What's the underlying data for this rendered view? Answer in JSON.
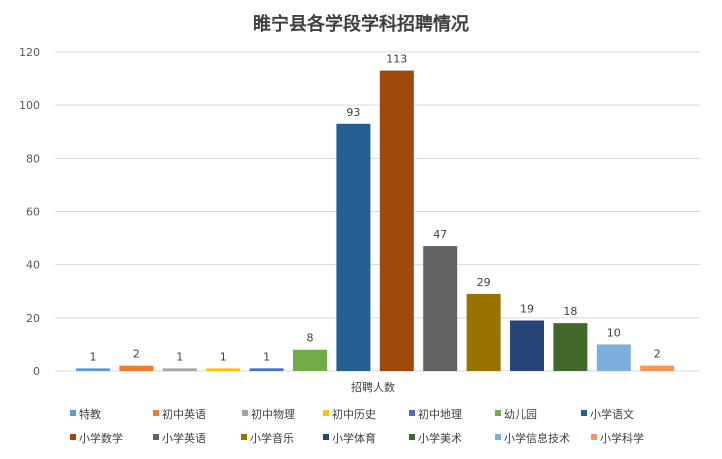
{
  "chart_data": {
    "type": "bar",
    "title": "睢宁县各学段学科招聘情况",
    "xlabel": "招聘人数",
    "ylabel": "",
    "ylim": [
      0,
      120
    ],
    "yticks": [
      0,
      20,
      40,
      60,
      80,
      100,
      120
    ],
    "grid": true,
    "legend_position": "bottom",
    "series": [
      {
        "name": "特教",
        "value": 1,
        "color": "#5b9bd5"
      },
      {
        "name": "初中英语",
        "value": 2,
        "color": "#ed7d31"
      },
      {
        "name": "初中物理",
        "value": 1,
        "color": "#a5a5a5"
      },
      {
        "name": "初中历史",
        "value": 1,
        "color": "#ffc000"
      },
      {
        "name": "初中地理",
        "value": 1,
        "color": "#4472c4"
      },
      {
        "name": "幼儿园",
        "value": 8,
        "color": "#70ad47"
      },
      {
        "name": "小学语文",
        "value": 93,
        "color": "#255e91"
      },
      {
        "name": "小学数学",
        "value": 113,
        "color": "#9e480e"
      },
      {
        "name": "小学英语",
        "value": 47,
        "color": "#636363"
      },
      {
        "name": "小学音乐",
        "value": 29,
        "color": "#997300"
      },
      {
        "name": "小学体育",
        "value": 19,
        "color": "#264478"
      },
      {
        "name": "小学美术",
        "value": 18,
        "color": "#43682b"
      },
      {
        "name": "小学信息技术",
        "value": 10,
        "color": "#7cafdd"
      },
      {
        "name": "小学科学",
        "value": 2,
        "color": "#f1975a"
      }
    ]
  }
}
